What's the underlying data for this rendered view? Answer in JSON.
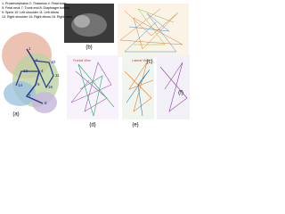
{
  "legend": [
    "1: Prosencephalon  2: Thalamus  4: Fetal brain",
    "5: Fetal neck  7: Trunk end  8: Diaphragm bottom",
    "9: Spine  10: Left shoulder  11: Left elbow",
    "13: Right shoulder  14: Right elbow  16: Right wrist"
  ],
  "panels": [
    "(a)",
    "(b)",
    "(c)",
    "(d)",
    "(e)",
    "(f)"
  ],
  "views": [
    "Frontal View",
    "Lateral View"
  ],
  "nodes": [
    "1",
    "2",
    "4",
    "5",
    "7",
    "8",
    "10",
    "11",
    "13",
    "14",
    "16"
  ]
}
